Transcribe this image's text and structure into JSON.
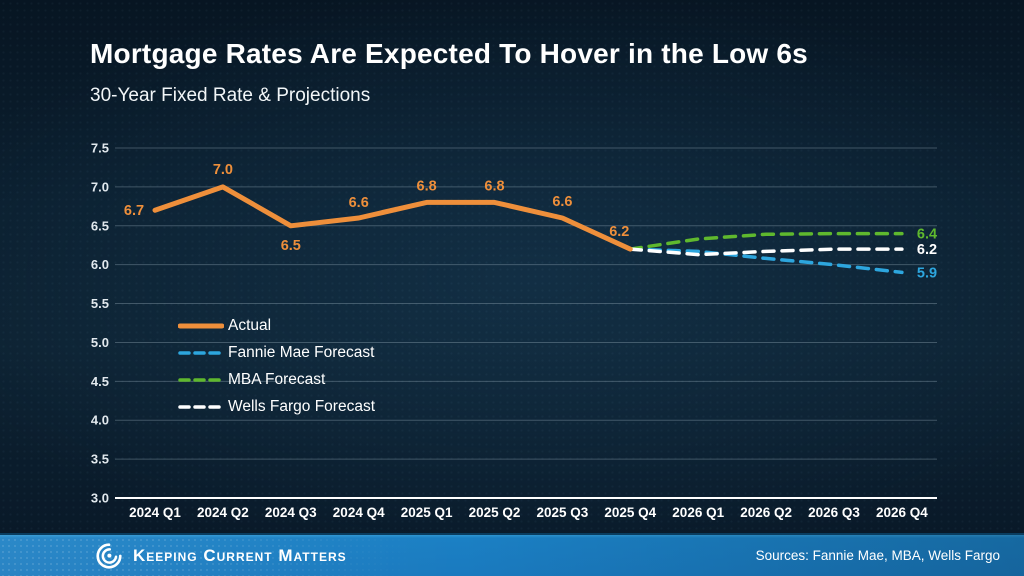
{
  "title": "Mortgage Rates Are Expected To Hover in the Low 6s",
  "subtitle": "30-Year Fixed Rate & Projections",
  "footer": {
    "brand": "Keeping Current Matters",
    "sources": "Sources: Fannie Mae, MBA, Wells Fargo"
  },
  "colors": {
    "actual_orange": "#EE8F3B",
    "fannie_blue": "#2DA6DE",
    "mba_green": "#5FB82E",
    "wells_white": "#FFFFFF",
    "grid_gray": "rgba(150,170,185,0.38)",
    "axis_white": "#FFFFFF",
    "tick_label": "#E2E9EE",
    "footer_blue": "#1A7ABF",
    "background": "#0B1F2F"
  },
  "chart_data": {
    "type": "line",
    "title": "30-Year Fixed Rate & Projections",
    "categories": [
      "2024 Q1",
      "2024 Q2",
      "2024 Q3",
      "2024 Q4",
      "2025 Q1",
      "2025 Q2",
      "2025 Q3",
      "2025 Q4",
      "2026 Q1",
      "2026 Q2",
      "2026 Q3",
      "2026 Q4"
    ],
    "ylim": [
      3.0,
      7.5
    ],
    "ytick_step": 0.5,
    "grid": true,
    "legend_position": "inside-left",
    "series": [
      {
        "name": "Actual",
        "color_key": "actual_orange",
        "style": "solid",
        "values": [
          6.7,
          7.0,
          6.5,
          6.6,
          6.8,
          6.8,
          6.6,
          6.2,
          null,
          null,
          null,
          null
        ],
        "point_labels": [
          "6.7",
          "7.0",
          "6.5",
          "6.6",
          "6.8",
          "6.8",
          "6.6",
          "6.2"
        ]
      },
      {
        "name": "Fannie Mae Forecast",
        "color_key": "fannie_blue",
        "style": "dashed",
        "values": [
          null,
          null,
          null,
          null,
          null,
          null,
          null,
          6.2,
          6.17,
          6.08,
          6.0,
          5.9
        ],
        "end_label": "5.9"
      },
      {
        "name": "MBA Forecast",
        "color_key": "mba_green",
        "style": "dashed",
        "values": [
          null,
          null,
          null,
          null,
          null,
          null,
          null,
          6.2,
          6.33,
          6.39,
          6.4,
          6.4
        ],
        "end_label": "6.4"
      },
      {
        "name": "Wells Fargo Forecast",
        "color_key": "wells_white",
        "style": "dashed",
        "values": [
          null,
          null,
          null,
          null,
          null,
          null,
          null,
          6.2,
          6.13,
          6.17,
          6.2,
          6.2
        ],
        "end_label": "6.2"
      }
    ]
  }
}
